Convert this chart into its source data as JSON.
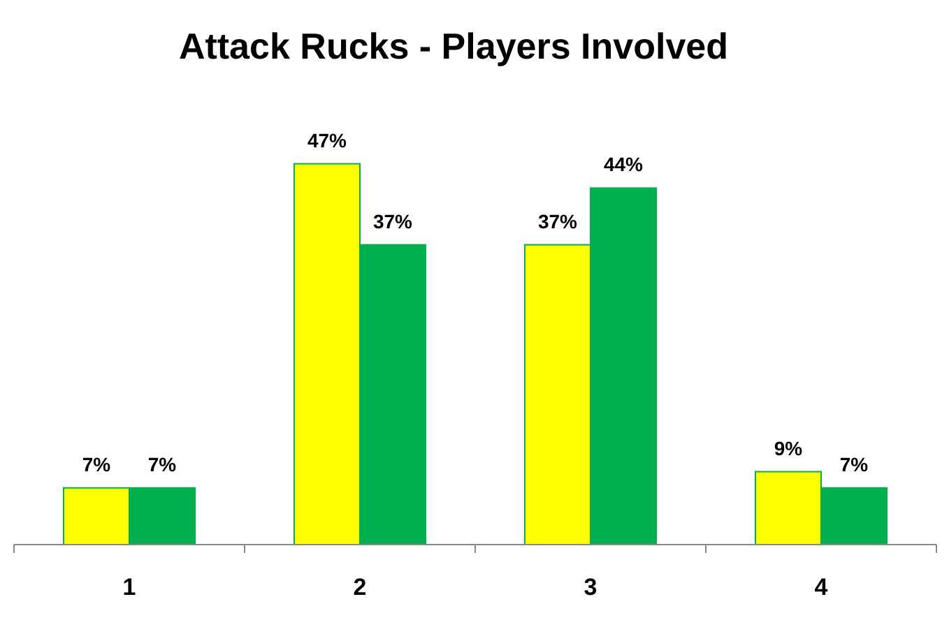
{
  "chart_data": {
    "type": "bar",
    "title": "Attack Rucks - Players Involved",
    "categories": [
      "1",
      "2",
      "3",
      "4"
    ],
    "series": [
      {
        "color": "#ffff00",
        "values": [
          7,
          47,
          37,
          9
        ],
        "value_labels": [
          "7%",
          "47%",
          "37%",
          "9%"
        ]
      },
      {
        "color": "#00b050",
        "values": [
          7,
          37,
          44,
          7
        ],
        "value_labels": [
          "7%",
          "37%",
          "44%",
          "7%"
        ]
      }
    ]
  }
}
